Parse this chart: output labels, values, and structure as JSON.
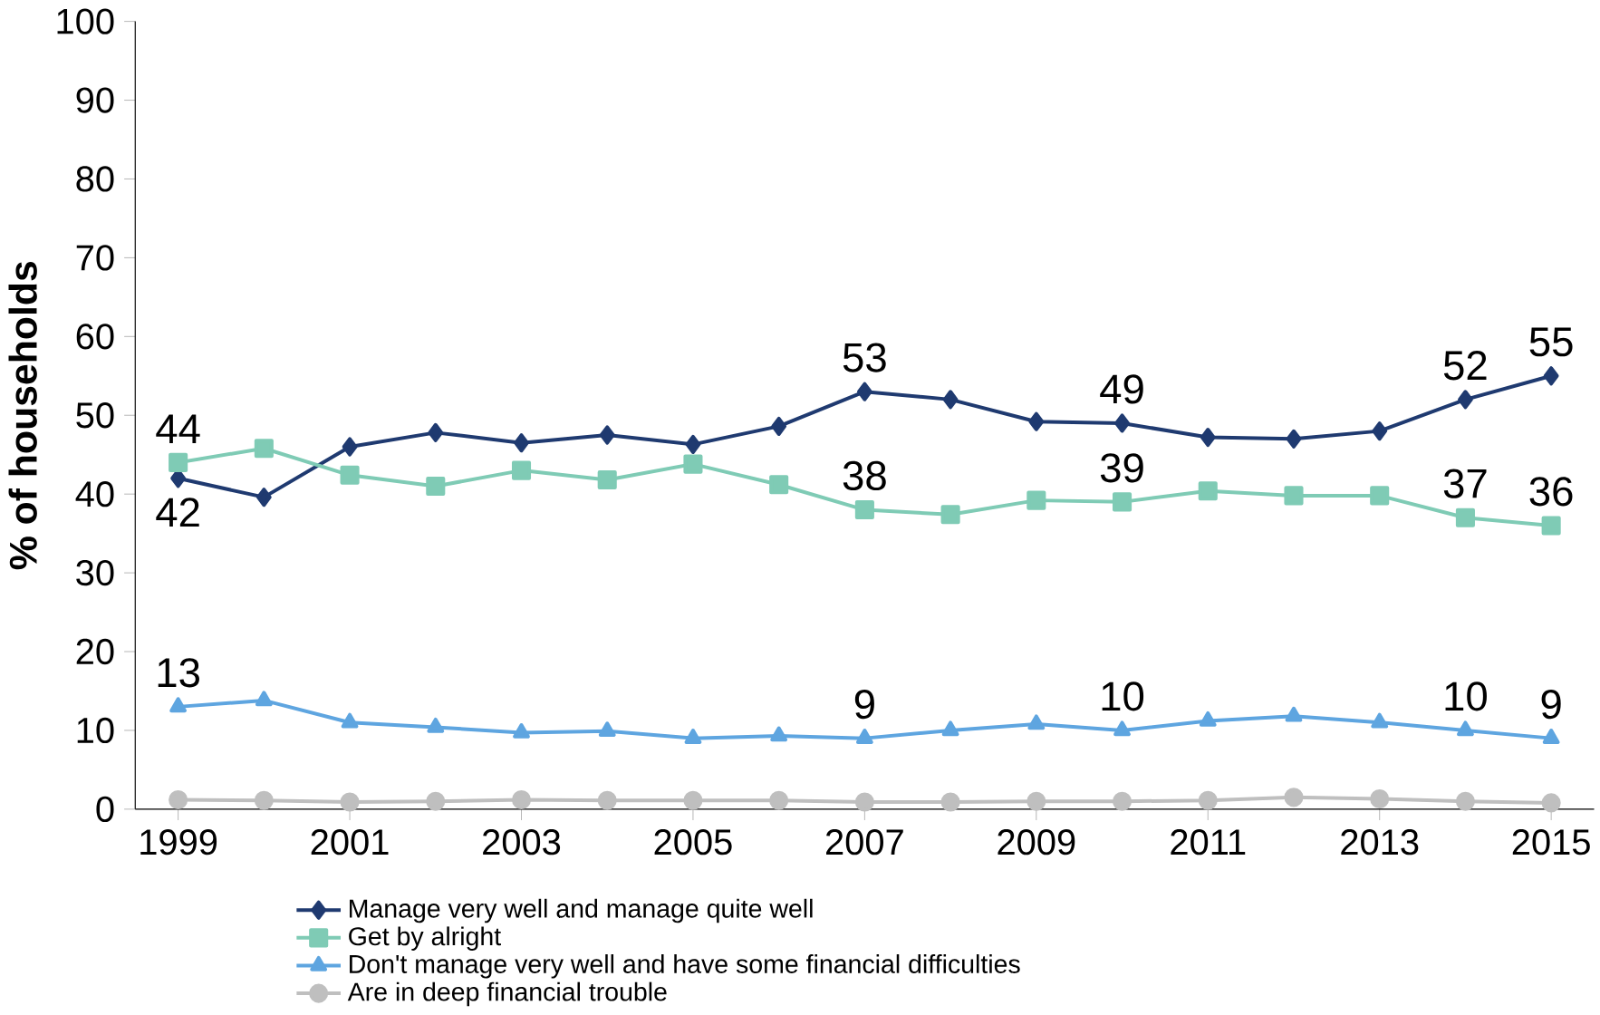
{
  "chart_data": {
    "type": "line",
    "ylabel": "% of households",
    "x": [
      1999,
      2000,
      2001,
      2002,
      2003,
      2004,
      2005,
      2006,
      2007,
      2008,
      2009,
      2010,
      2011,
      2012,
      2013,
      2014,
      2015
    ],
    "xlim": [
      1998.5,
      2015.5
    ],
    "xticks": [
      1999,
      2001,
      2003,
      2005,
      2007,
      2009,
      2011,
      2013,
      2015
    ],
    "ylim": [
      0,
      100
    ],
    "yticks": [
      0,
      10,
      20,
      30,
      40,
      50,
      60,
      70,
      80,
      90,
      100
    ],
    "grid": false,
    "legend": "bottom",
    "series": [
      {
        "name": "Manage very well and manage quite well",
        "color": "#1f3a70",
        "marker": "diamond",
        "values": [
          42,
          39.6,
          46,
          47.8,
          46.5,
          47.5,
          46.3,
          48.6,
          53,
          52,
          49.2,
          49,
          47.2,
          47,
          48,
          52,
          55
        ],
        "value_labels": [
          "42",
          null,
          null,
          null,
          null,
          null,
          null,
          null,
          "53",
          null,
          null,
          "49",
          null,
          null,
          null,
          "52",
          "55"
        ]
      },
      {
        "name": "Get by alright",
        "color": "#7fcbb5",
        "marker": "square",
        "values": [
          44,
          45.8,
          42.4,
          41,
          43,
          41.8,
          43.8,
          41.2,
          38,
          37.4,
          39.2,
          39,
          40.4,
          39.8,
          39.8,
          37,
          36
        ],
        "value_labels": [
          "44",
          null,
          null,
          null,
          null,
          null,
          null,
          null,
          "38",
          null,
          null,
          "39",
          null,
          null,
          null,
          "37",
          "36"
        ]
      },
      {
        "name": "Don't manage very well and have some financial difficulties",
        "color": "#5ea5e0",
        "marker": "triangle",
        "values": [
          13,
          13.8,
          11,
          10.4,
          9.7,
          9.9,
          9,
          9.3,
          9,
          10,
          10.8,
          10,
          11.2,
          11.8,
          11,
          10,
          9
        ],
        "value_labels": [
          "13",
          null,
          null,
          null,
          null,
          null,
          null,
          null,
          "9",
          null,
          null,
          "10",
          null,
          null,
          null,
          "10",
          "9"
        ]
      },
      {
        "name": "Are in deep financial trouble",
        "color": "#bfbfbf",
        "marker": "circle",
        "values": [
          1.2,
          1.1,
          0.9,
          1.0,
          1.2,
          1.1,
          1.1,
          1.1,
          0.9,
          0.9,
          1.0,
          1.0,
          1.1,
          1.5,
          1.3,
          1.0,
          0.8
        ]
      }
    ]
  }
}
